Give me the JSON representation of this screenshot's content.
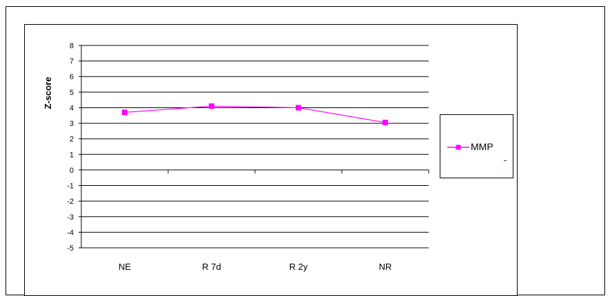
{
  "chart_data": {
    "type": "line",
    "categories": [
      "NE",
      "R 7d",
      "R 2y",
      "NR"
    ],
    "series": [
      {
        "name": "MMP",
        "values": [
          3.7,
          4.1,
          4.0,
          3.05
        ]
      }
    ],
    "title": "",
    "xlabel": "",
    "ylabel": "Z-score",
    "ylim": [
      -5,
      8
    ],
    "yticks": [
      "8",
      "7",
      "6",
      "5",
      "4",
      "3",
      "2",
      "1",
      "0",
      "-1",
      "-2",
      "-3",
      "-4",
      "-5"
    ],
    "grid": true,
    "legend_position": "right",
    "colors": {
      "series": "#ff00ff",
      "grid": "#000000",
      "axis": "#000000"
    }
  }
}
